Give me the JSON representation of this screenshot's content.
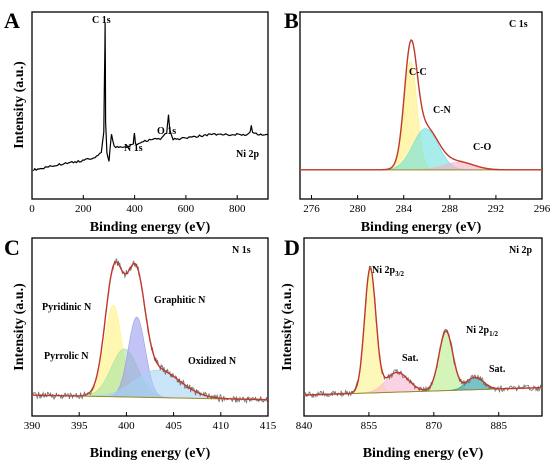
{
  "chart_data": [
    {
      "panel": "A",
      "type": "line",
      "xlabel": "Binding energy (eV)",
      "ylabel": "Intensity (a.u.)",
      "xlim": [
        0,
        920
      ],
      "xticks": [
        0,
        200,
        400,
        600,
        800
      ],
      "y_ticks_shown": false,
      "series": [
        {
          "color": "#000000",
          "x": [
            5,
            40,
            100,
            180,
            240,
            270,
            280,
            284,
            285,
            287,
            292,
            300,
            310,
            320,
            350,
            380,
            395,
            399,
            403,
            410,
            440,
            480,
            500,
            525,
            530,
            532,
            537,
            550,
            600,
            700,
            780,
            830,
            850,
            855,
            860,
            880,
            920
          ],
          "y": [
            12,
            13,
            15,
            17,
            19,
            22,
            35,
            85,
            100,
            40,
            22,
            17,
            33,
            26,
            25,
            26,
            28,
            34,
            28,
            27,
            29,
            31,
            30,
            34,
            42,
            45,
            36,
            30,
            31,
            33,
            33,
            33,
            34,
            39,
            34,
            33,
            33
          ]
        }
      ],
      "annotations": [
        "C 1s",
        "N 1s",
        "O 1s",
        "Ni 2p"
      ]
    },
    {
      "panel": "B",
      "type": "line",
      "corner_label": "C 1s",
      "xlabel": "Binding energy (eV)",
      "ylabel": "",
      "xlim": [
        275,
        296
      ],
      "xticks": [
        276,
        280,
        284,
        288,
        292,
        296
      ],
      "y_ticks_shown": false,
      "peaks": [
        {
          "label": "C-C",
          "center": 284.6,
          "height": 100,
          "sigma": 0.55,
          "color": "#ffef7a"
        },
        {
          "label": "C-N",
          "center": 285.9,
          "height": 38,
          "sigma": 1.1,
          "color": "#6ee0dd"
        },
        {
          "label": "C-O",
          "center": 288.8,
          "height": 7,
          "sigma": 1.3,
          "color": "#f3b0c6"
        }
      ],
      "annotations": [
        "C-C",
        "C-N",
        "C-O"
      ]
    },
    {
      "panel": "C",
      "type": "line",
      "corner_label": "N 1s",
      "xlabel": "Binding energy (eV)",
      "ylabel": "Intensity (a.u.)",
      "xlim": [
        390,
        415
      ],
      "xticks": [
        390,
        395,
        400,
        405,
        410,
        415
      ],
      "y_ticks_shown": false,
      "peaks": [
        {
          "label": "Pyridinic N",
          "center": 398.6,
          "height": 80,
          "sigma": 0.9,
          "color": "#fff27e"
        },
        {
          "label": "Pyrrolic N",
          "center": 399.8,
          "height": 42,
          "sigma": 1.4,
          "color": "#a8e3a2"
        },
        {
          "label": "Graphitic N",
          "center": 401.1,
          "height": 70,
          "sigma": 0.9,
          "color": "#9a9cf0"
        },
        {
          "label": "Oxidized N",
          "center": 403.3,
          "height": 24,
          "sigma": 2.4,
          "color": "#a7d4f2"
        }
      ],
      "annotations": [
        "Pyridinic N",
        "Pyrrolic N",
        "Graphitic N",
        "Oxidized N"
      ]
    },
    {
      "panel": "D",
      "type": "line",
      "corner_label": "Ni 2p",
      "xlabel": "Binding energy (eV)",
      "ylabel": "Intensity (a.u.)",
      "xlim": [
        840,
        895
      ],
      "xticks": [
        840,
        855,
        870,
        885
      ],
      "y_ticks_shown": false,
      "peaks": [
        {
          "label": "Ni 2p3/2",
          "center": 855.3,
          "height": 100,
          "sigma": 1.3,
          "color": "#fbf48a"
        },
        {
          "label": "Sat.",
          "center": 861.5,
          "height": 16,
          "sigma": 2.6,
          "color": "#f6b4d0"
        },
        {
          "label": "Ni 2p1/2",
          "center": 872.8,
          "height": 48,
          "sigma": 1.6,
          "color": "#b8ec8a"
        },
        {
          "label": "Sat.",
          "center": 879.5,
          "height": 10,
          "sigma": 2.0,
          "color": "#1e9aa6"
        }
      ],
      "annotations": [
        "Sat.",
        "Sat."
      ]
    }
  ],
  "panel_letters": [
    "A",
    "B",
    "C",
    "D"
  ],
  "labels": {
    "xlabel": "Binding energy (eV)",
    "ylabel": "Intensity (a.u.)",
    "a_c1s": "C 1s",
    "a_n1s": "N 1s",
    "a_o1s": "O 1s",
    "a_ni2p": "Ni 2p",
    "b_corner": "C 1s",
    "b_cc": "C-C",
    "b_cn": "C-N",
    "b_co": "C-O",
    "c_corner": "N 1s",
    "c_pyridinic": "Pyridinic N",
    "c_pyrrolic": "Pyrrolic N",
    "c_graphitic": "Graphitic N",
    "c_oxidized": "Oxidized N",
    "d_corner": "Ni 2p",
    "d_ni_base": "Ni 2p",
    "d_ni32_sub": "3/2",
    "d_ni12_sub": "1/2",
    "d_sat1": "Sat.",
    "d_sat2": "Sat."
  },
  "colors": {
    "envelope": "#c0392b",
    "raw": "#6e6e6e",
    "baseline": "#9a8a2a",
    "axis": "#000000"
  }
}
